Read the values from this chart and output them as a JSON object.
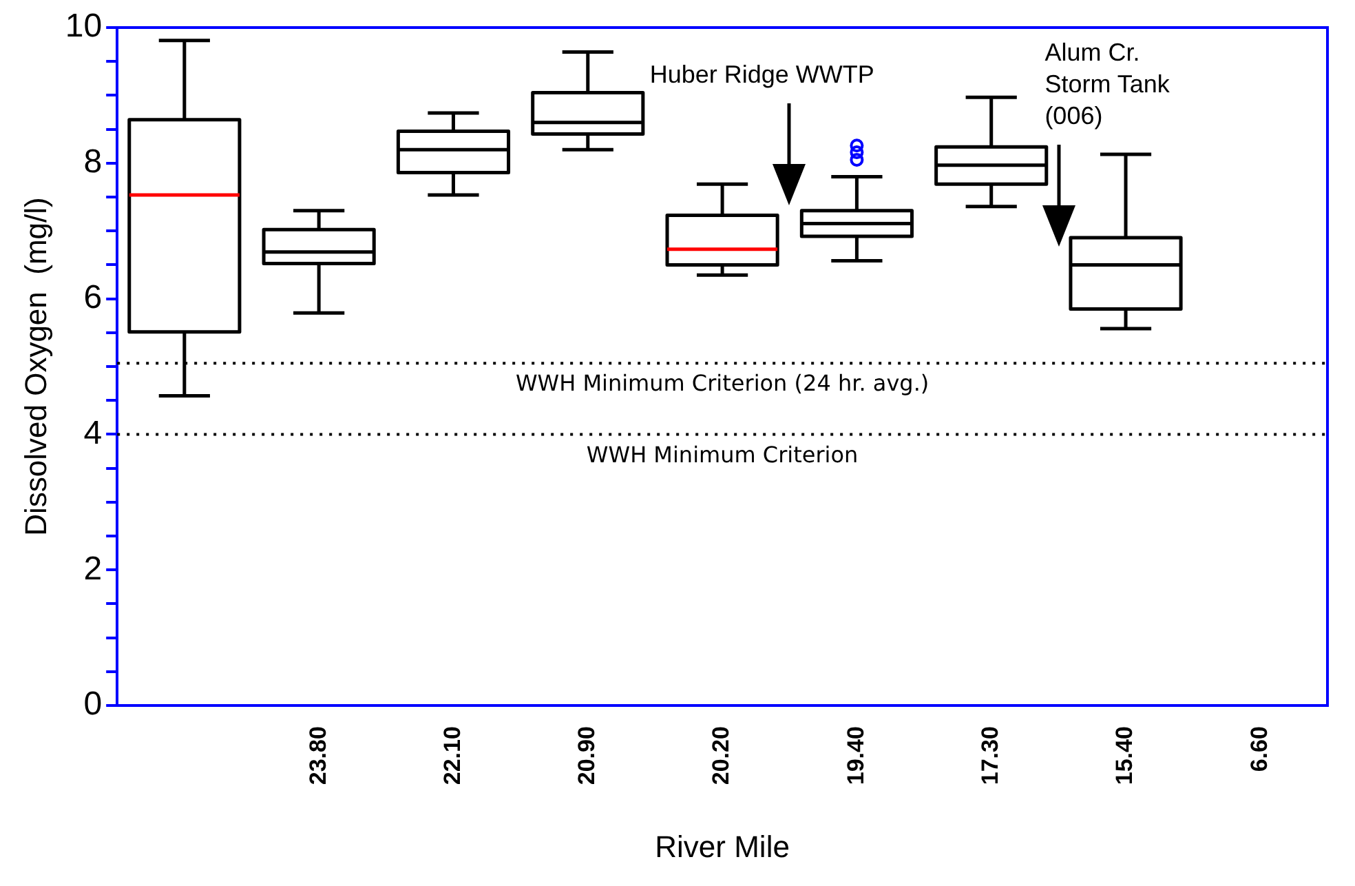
{
  "chart_data": {
    "type": "box",
    "xlabel": "River Mile",
    "ylabel": "Dissolved Oxygen  (mg/l)",
    "categories": [
      null,
      "23.80",
      "22.10",
      "20.90",
      "20.20",
      "19.40",
      "17.30",
      "15.40",
      "6.60"
    ],
    "series": [
      {
        "color": "#000000",
        "boxes": [
          {
            "low": 4.57,
            "q1": 5.51,
            "median": 7.53,
            "q3": 8.64,
            "high": 9.81
          },
          {
            "low": 5.79,
            "q1": 6.52,
            "median": 6.69,
            "q3": 7.02,
            "high": 7.3
          },
          {
            "low": 7.53,
            "q1": 7.86,
            "median": 8.2,
            "q3": 8.47,
            "high": 8.74
          },
          {
            "low": 8.2,
            "q1": 8.43,
            "median": 8.6,
            "q3": 9.04,
            "high": 9.64
          },
          {
            "low": 6.35,
            "q1": 6.5,
            "median": 6.73,
            "q3": 7.23,
            "high": 7.69
          },
          {
            "low": 6.56,
            "q1": 6.92,
            "median": 7.11,
            "q3": 7.3,
            "high": 7.8,
            "outliers": [
              8.05,
              8.16,
              8.26
            ]
          },
          {
            "low": 7.36,
            "q1": 7.69,
            "median": 7.97,
            "q3": 8.24,
            "high": 8.97
          },
          {
            "low": 5.56,
            "q1": 5.85,
            "median": 6.5,
            "q3": 6.9,
            "high": 8.13
          },
          null
        ]
      }
    ],
    "colors": [
      "#ff0000",
      "#000000",
      "#000000",
      "#000000",
      "#ff0000",
      "#000000",
      "#000000",
      "#000000",
      null
    ],
    "ylim": [
      0,
      10
    ],
    "yticks": [
      0,
      {
        "value": 0.5,
        "label": null
      },
      {
        "value": 1,
        "label": null
      },
      {
        "value": 1.5,
        "label": null
      },
      2,
      {
        "value": 2.5,
        "label": null
      },
      {
        "value": 3,
        "label": null
      },
      {
        "value": 3.5,
        "label": null
      },
      4,
      {
        "value": 4.5,
        "label": null
      },
      {
        "value": 5,
        "label": null
      },
      {
        "value": 5.5,
        "label": null
      },
      6,
      {
        "value": 6.5,
        "label": null
      },
      {
        "value": 7,
        "label": null
      },
      {
        "value": 7.5,
        "label": null
      },
      8,
      {
        "value": 8.5,
        "label": null
      },
      {
        "value": 9,
        "label": null
      },
      {
        "value": 9.5,
        "label": null
      },
      10
    ],
    "ref_lines": [
      {
        "axis": "y",
        "value": 5.05,
        "label": "WWH Minimum Criterion (24 hr. avg.)",
        "line_style": "dotted",
        "color": "#000000"
      },
      {
        "axis": "y",
        "value": 4,
        "label": "WWH Minimum Criterion",
        "line_style": "dotted",
        "color": "#000000"
      }
    ],
    "annotations": [
      "Huber Ridge WWTP",
      "Alum Cr.\nStorm Tank\n(006)"
    ],
    "grid": false,
    "legend": false
  }
}
